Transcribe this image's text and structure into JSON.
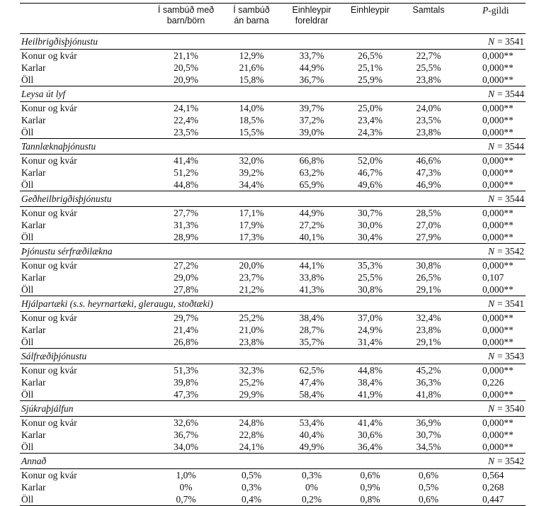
{
  "table": {
    "header": [
      [
        "Í sambúð með",
        "barn/börn"
      ],
      [
        "Í sambúð",
        "án barna"
      ],
      [
        "Einhleypir",
        "foreldrar"
      ],
      [
        "Einhleypir"
      ],
      [
        "Samtals"
      ]
    ],
    "p_header": {
      "italic": "P",
      "text": "-gildi"
    },
    "n_symbol": "N",
    "sections": [
      {
        "title": "Heilbrigðisþjónustu",
        "n": "= 3541",
        "rows": [
          [
            "Konur og kvár",
            "21,1%",
            "12,9%",
            "33,7%",
            "26,5%",
            "22,7%",
            "0,000**"
          ],
          [
            "Karlar",
            "20,5%",
            "21,6%",
            "44,9%",
            "25,1%",
            "25,5%",
            "0,000**"
          ],
          [
            "Öll",
            "20,9%",
            "15,8%",
            "36,7%",
            "25,9%",
            "23,8%",
            "0,000**"
          ]
        ]
      },
      {
        "title": "Leysa út lyf",
        "n": "= 3544",
        "rows": [
          [
            "Konur og kvár",
            "24,1%",
            "14,0%",
            "39,7%",
            "25,0%",
            "24,0%",
            "0,000**"
          ],
          [
            "Karlar",
            "22,4%",
            "18,5%",
            "37,2%",
            "23,4%",
            "23,5%",
            "0,000**"
          ],
          [
            "Öll",
            "23,5%",
            "15,5%",
            "39,0%",
            "24,3%",
            "23,8%",
            "0,000**"
          ]
        ]
      },
      {
        "title": "Tannlæknaþjónustu",
        "n": "= 3544",
        "rows": [
          [
            "Konur og kvár",
            "41,4%",
            "32,0%",
            "66,8%",
            "52,0%",
            "46,6%",
            "0,000**"
          ],
          [
            "Karlar",
            "51,2%",
            "39,2%",
            "63,2%",
            "46,7%",
            "47,3%",
            "0,000**"
          ],
          [
            "Öll",
            "44,8%",
            "34,4%",
            "65,9%",
            "49,6%",
            "46,9%",
            "0,000**"
          ]
        ]
      },
      {
        "title": "Geðheilbrigðisþjónustu",
        "n": "= 3544",
        "rows": [
          [
            "Konur og kvár",
            "27,7%",
            "17,1%",
            "44,9%",
            "30,7%",
            "28,5%",
            "0,000**"
          ],
          [
            "Karlar",
            "31,3%",
            "17,9%",
            "27,2%",
            "30,0%",
            "27,0%",
            "0,000**"
          ],
          [
            "Öll",
            "28,9%",
            "17,3%",
            "40,1%",
            "30,4%",
            "27,9%",
            "0,000**"
          ]
        ]
      },
      {
        "title": "Þjónustu sérfræðilækna",
        "n": "= 3542",
        "rows": [
          [
            "Konur og kvár",
            "27,2%",
            "20,0%",
            "44,1%",
            "35,3%",
            "30,8%",
            "0,000**"
          ],
          [
            "Karlar",
            "29,0%",
            "23,7%",
            "33,8%",
            "25,5%",
            "26,5%",
            "0,107"
          ],
          [
            "Öll",
            "27,8%",
            "21,2%",
            "41,3%",
            "30,8%",
            "29,1%",
            "0,000**"
          ]
        ]
      },
      {
        "title": "Hjálpartæki (s.s. heyrnartæki, gleraugu, stoðtæki)",
        "n": "= 3541",
        "rows": [
          [
            "Konur og kvár",
            "29,7%",
            "25,2%",
            "38,4%",
            "37,0%",
            "32,4%",
            "0,000**"
          ],
          [
            "Karlar",
            "21,4%",
            "21,0%",
            "28,7%",
            "24,9%",
            "23,8%",
            "0,000**"
          ],
          [
            "Öll",
            "26,8%",
            "23,8%",
            "35,7%",
            "31,4%",
            "29,1%",
            "0,000**"
          ]
        ]
      },
      {
        "title": "Sálfræðiþjónustu",
        "n": "= 3543",
        "rows": [
          [
            "Konur og kvár",
            "51,3%",
            "32,3%",
            "62,5%",
            "44,8%",
            "45,2%",
            "0,000**"
          ],
          [
            "Karlar",
            "39,8%",
            "25,2%",
            "47,4%",
            "38,4%",
            "36,3%",
            "0,226"
          ],
          [
            "Öll",
            "47,3%",
            "29,9%",
            "58,4%",
            "41,9%",
            "41,8%",
            "0,000**"
          ]
        ]
      },
      {
        "title": "Sjúkraþjálfun",
        "n": "= 3540",
        "rows": [
          [
            "Konur og kvár",
            "32,6%",
            "24,8%",
            "53,4%",
            "41,4%",
            "36,9%",
            "0,000**"
          ],
          [
            "Karlar",
            "36,7%",
            "22,8%",
            "40,4%",
            "30,6%",
            "30,7%",
            "0,000**"
          ],
          [
            "Öll",
            "34,0%",
            "24,1%",
            "49,9%",
            "36,4%",
            "34,5%",
            "0,000**"
          ]
        ]
      },
      {
        "title": "Annað",
        "n": "= 3542",
        "rows": [
          [
            "Konur og kvár",
            "1,0%",
            "0,5%",
            "0,3%",
            "0,6%",
            "0,6%",
            "0,564"
          ],
          [
            "Karlar",
            "0%",
            "0,3%",
            "0%",
            "0,9%",
            "0,5%",
            "0,268"
          ],
          [
            "Öll",
            "0,7%",
            "0,4%",
            "0,2%",
            "0,8%",
            "0,6%",
            "0,447"
          ]
        ]
      }
    ]
  }
}
